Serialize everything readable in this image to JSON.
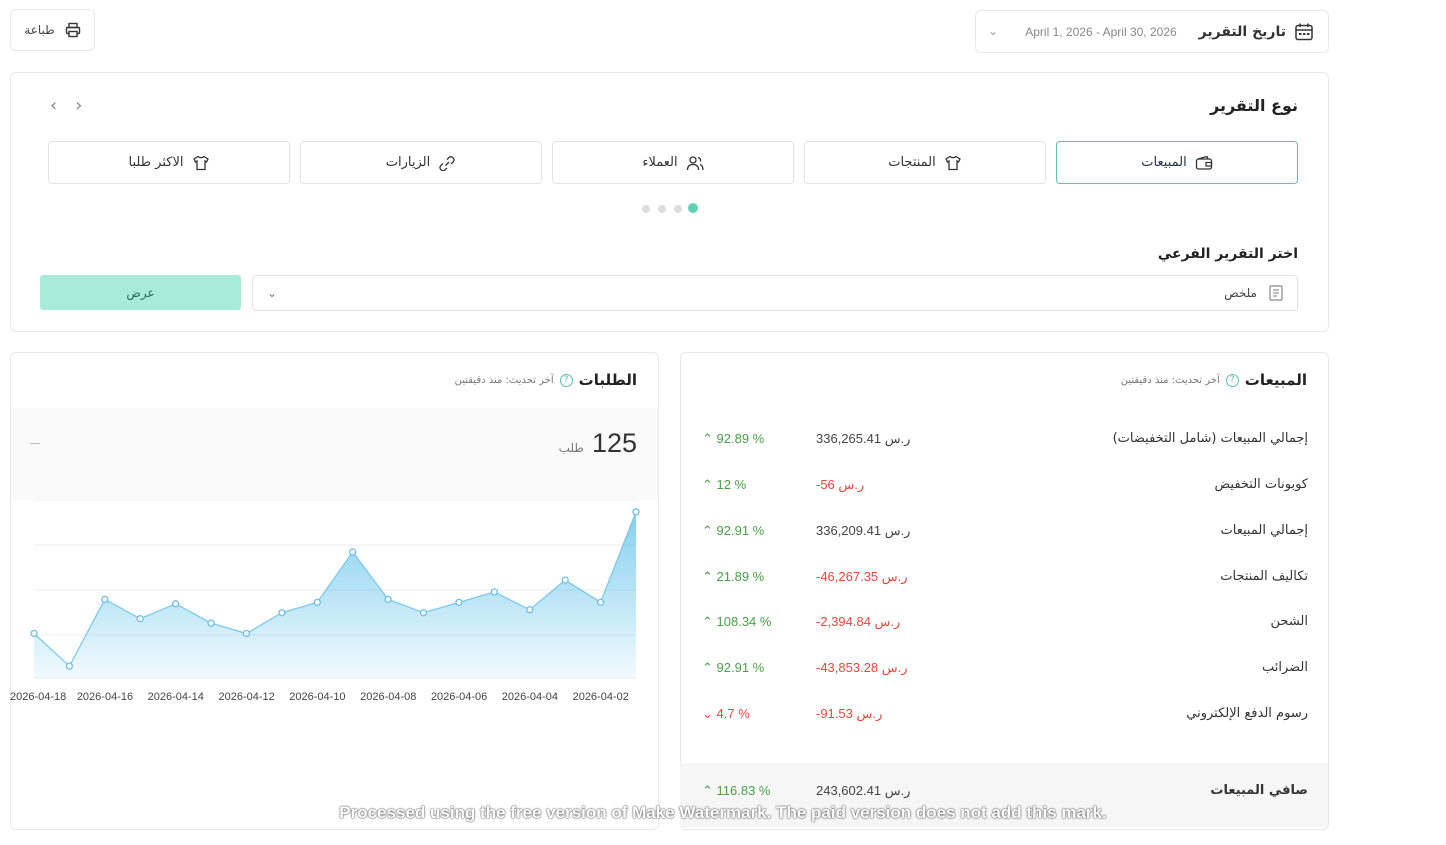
{
  "toolbar": {
    "print_label": "طباعة"
  },
  "date_filter": {
    "label": "تاريخ التقرير",
    "value": "April 1, 2026 - April 30, 2026"
  },
  "report_type": {
    "title": "نوع التقرير",
    "tabs": [
      {
        "label": "المبيعات",
        "icon": "wallet-icon",
        "active": true
      },
      {
        "label": "المنتجات",
        "icon": "shirt-icon",
        "active": false
      },
      {
        "label": "العملاء",
        "icon": "users-icon",
        "active": false
      },
      {
        "label": "الزيارات",
        "icon": "link-icon",
        "active": false
      },
      {
        "label": "الاكثر طلبا",
        "icon": "shirt-icon",
        "active": false
      }
    ]
  },
  "sub_report": {
    "title": "اختر التقرير الفرعي",
    "selected": "ملخص",
    "show_button": "عرض"
  },
  "sales_panel": {
    "title": "المبيعات",
    "updated": "آخر تحديث: منذ دقيقتين",
    "rows": [
      {
        "label": "إجمالي المبيعات (شامل التخفيضات)",
        "value": "336,265.41 ر.س",
        "pct": "92.89 %",
        "trend": "up",
        "value_color": "plain"
      },
      {
        "label": "كوبونات التخفيض",
        "value": "-56 ر.س",
        "pct": "12 %",
        "trend": "up",
        "value_color": "neg"
      },
      {
        "label": "إجمالي المبيعات",
        "value": "336,209.41 ر.س",
        "pct": "92.91 %",
        "trend": "up",
        "value_color": "plain"
      },
      {
        "label": "تكاليف المنتجات",
        "value": "-46,267.35 ر.س",
        "pct": "21.89 %",
        "trend": "up",
        "value_color": "neg"
      },
      {
        "label": "الشحن",
        "value": "-2,394.84 ر.س",
        "pct": "108.34 %",
        "trend": "up",
        "value_color": "neg"
      },
      {
        "label": "الضرائب",
        "value": "-43,853.28 ر.س",
        "pct": "92.91 %",
        "trend": "up",
        "value_color": "neg"
      },
      {
        "label": "رسوم الدفع الإلكتروني",
        "value": "-91.53 ر.س",
        "pct": "4.7 %",
        "trend": "down",
        "value_color": "neg"
      }
    ],
    "net": {
      "label": "صافي المبيعات",
      "value": "243,602.41 ر.س",
      "pct": "116.83 %",
      "trend": "up"
    }
  },
  "orders_panel": {
    "title": "الطلبات",
    "updated": "آخر تحديث: منذ دقيقتين",
    "total": "125",
    "unit": "طلب"
  },
  "chart_data": {
    "type": "area",
    "x_tick_labels": [
      "2026-04-18",
      "2026-04-16",
      "2026-04-14",
      "2026-04-12",
      "2026-04-10",
      "2026-04-08",
      "2026-04-06",
      "2026-04-04",
      "2026-04-02"
    ],
    "x_direction": "reversed (newest on left, oldest on right)",
    "x": [
      "2026-04-18",
      "2026-04-17",
      "2026-04-16",
      "2026-04-15",
      "2026-04-14",
      "2026-04-13",
      "2026-04-12",
      "2026-04-11",
      "2026-04-10",
      "2026-04-09",
      "2026-04-08",
      "2026-04-07",
      "2026-04-06",
      "2026-04-05",
      "2026-04-04",
      "2026-04-03",
      "2026-04-02",
      "2026-04-01"
    ],
    "series": [
      {
        "values": [
          3.0,
          0.8,
          5.3,
          4.0,
          5.0,
          3.7,
          3.0,
          4.4,
          5.1,
          8.5,
          5.3,
          4.4,
          5.1,
          5.8,
          4.6,
          6.6,
          5.1,
          11.2
        ]
      }
    ],
    "ylim": [
      0,
      12
    ],
    "grid": true,
    "color": "#5bc0eb"
  },
  "watermark_text": "Processed using the free version of Make Watermark. The paid version does not add this mark."
}
